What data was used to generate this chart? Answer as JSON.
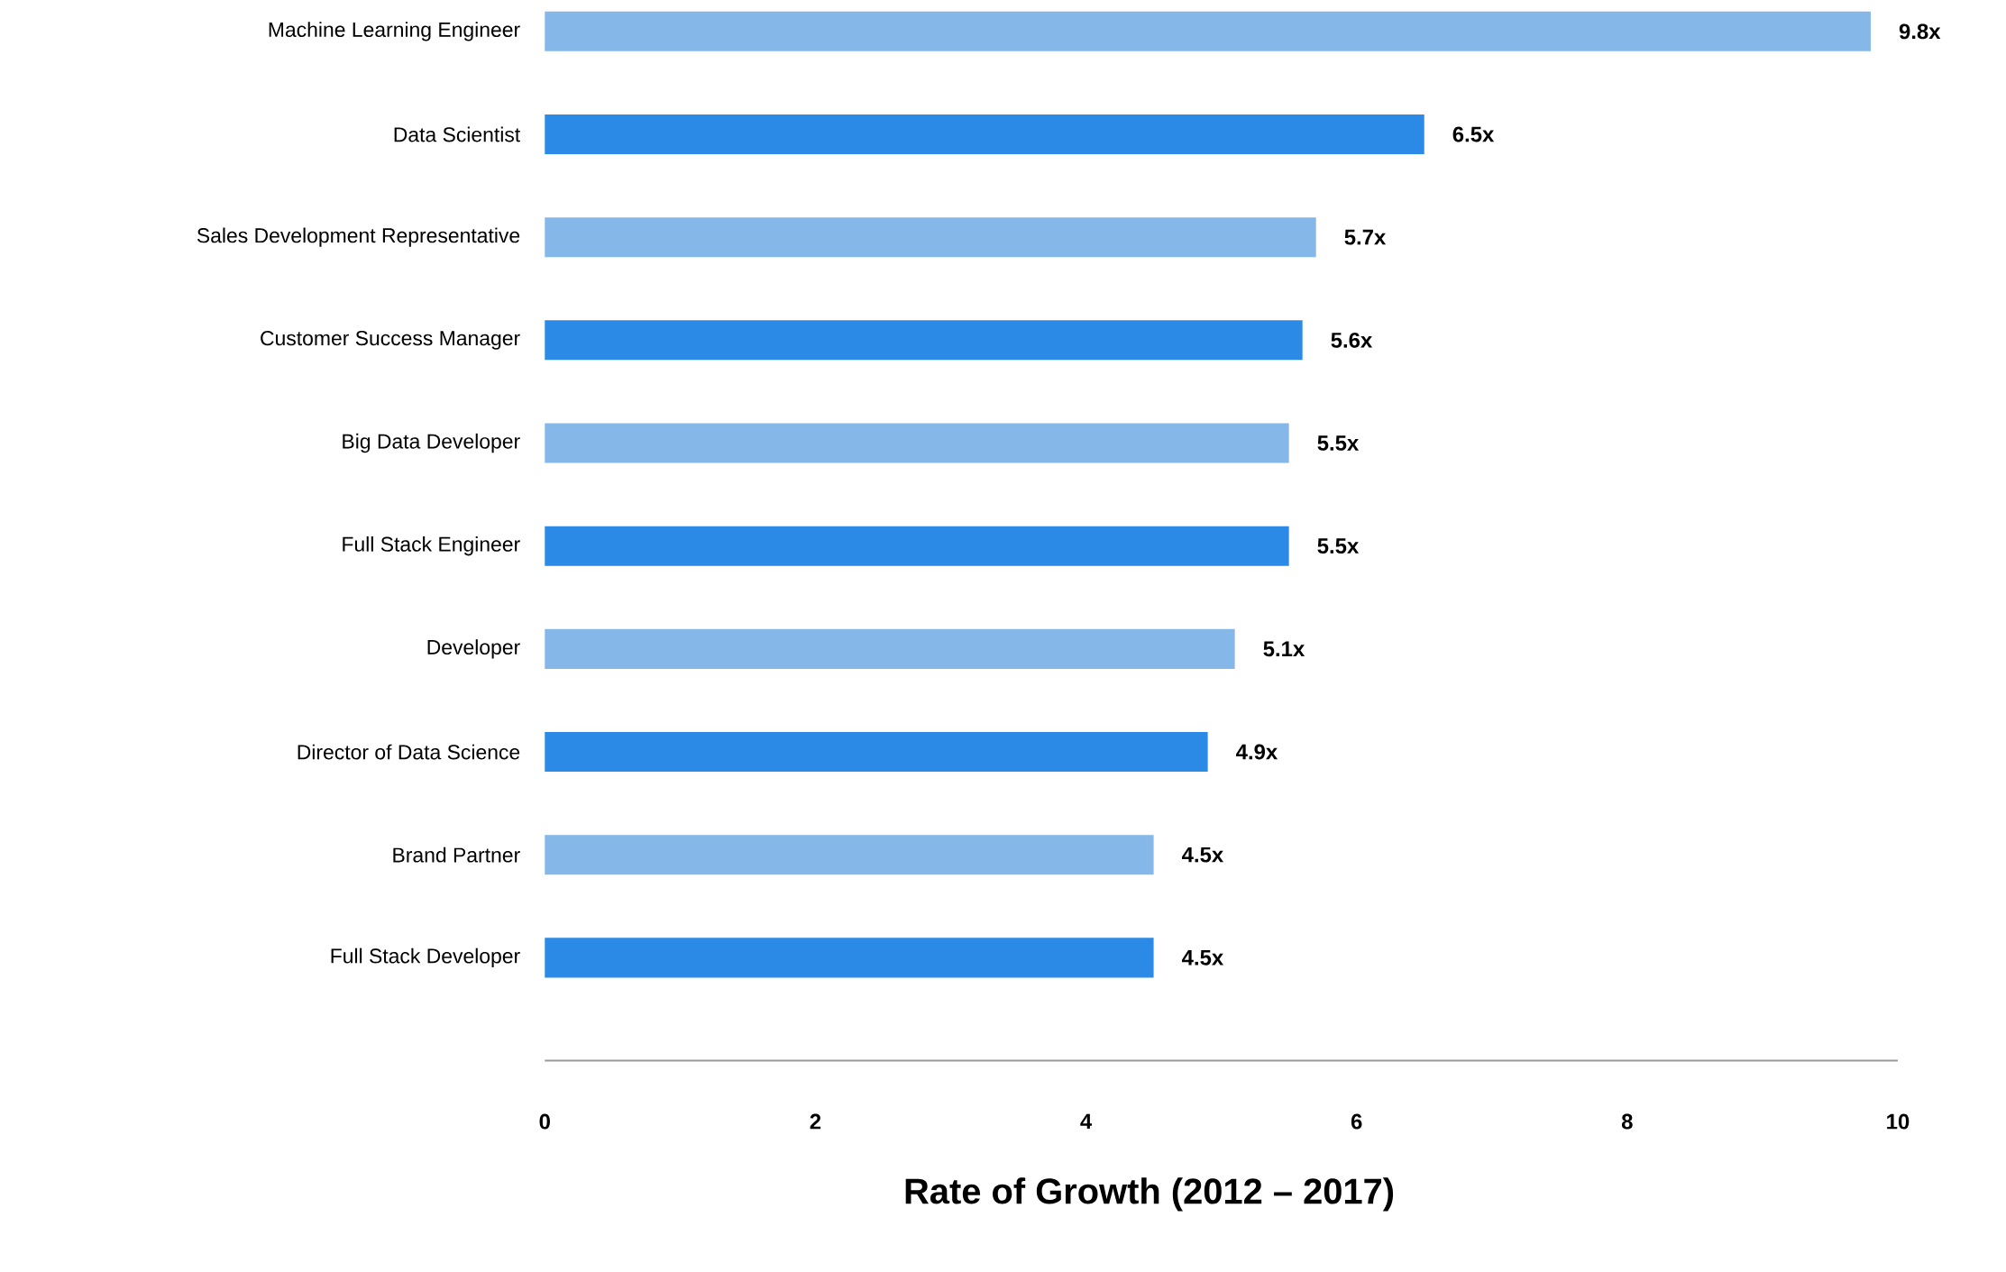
{
  "chart_data": {
    "type": "bar",
    "orientation": "horizontal",
    "xlabel": "Rate of Growth (2012 – 2017)",
    "categories": [
      "Machine Learning Engineer",
      "Data Scientist",
      "Sales Development Representative",
      "Customer Success Manager",
      "Big Data Developer",
      "Full Stack Engineer",
      "Developer",
      "Director of Data Science",
      "Brand Partner",
      "Full Stack Developer"
    ],
    "values": [
      9.8,
      6.5,
      5.7,
      5.6,
      5.5,
      5.5,
      5.1,
      4.9,
      4.5,
      4.5
    ],
    "value_labels": [
      "9.8x",
      "6.5x",
      "5.7x",
      "5.6x",
      "5.5x",
      "5.5x",
      "5.1x",
      "4.9x",
      "4.5x",
      "4.5x"
    ],
    "colors": [
      "#85b8e8",
      "#2b8ae6",
      "#85b8e8",
      "#2b8ae6",
      "#85b8e8",
      "#2b8ae6",
      "#85b8e8",
      "#2b8ae6",
      "#85b8e8",
      "#2b8ae6"
    ],
    "xlim": [
      0,
      10
    ],
    "xticks": [
      0,
      2,
      4,
      6,
      8,
      10
    ]
  }
}
